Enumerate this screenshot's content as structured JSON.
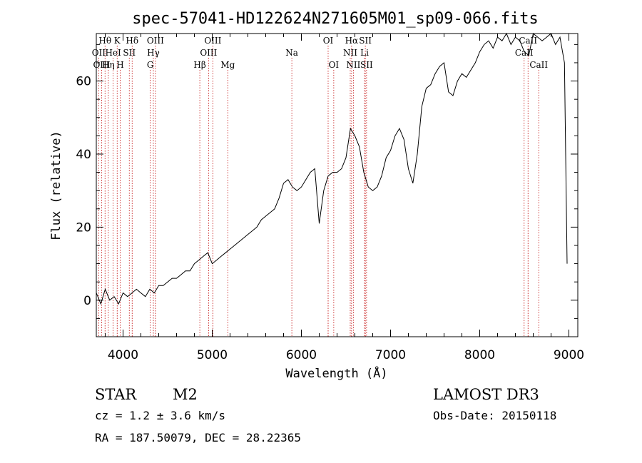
{
  "chart_data": {
    "type": "line",
    "title": "spec-57041-HD122624N271605M01_sp09-066.fits",
    "xlabel": "Wavelength (Å)",
    "ylabel": "Flux (relative)",
    "xlim": [
      3700,
      9100
    ],
    "ylim": [
      -10,
      73
    ],
    "xticks": [
      4000,
      5000,
      6000,
      7000,
      8000,
      9000
    ],
    "yticks": [
      0,
      20,
      40,
      60
    ],
    "series": [
      {
        "name": "spectrum",
        "x": [
          3700,
          3750,
          3800,
          3850,
          3900,
          3950,
          4000,
          4050,
          4100,
          4150,
          4200,
          4250,
          4300,
          4350,
          4400,
          4450,
          4500,
          4550,
          4600,
          4650,
          4700,
          4750,
          4800,
          4850,
          4900,
          4950,
          5000,
          5050,
          5100,
          5150,
          5200,
          5250,
          5300,
          5350,
          5400,
          5450,
          5500,
          5550,
          5600,
          5650,
          5700,
          5750,
          5800,
          5850,
          5900,
          5950,
          6000,
          6050,
          6100,
          6150,
          6200,
          6250,
          6300,
          6350,
          6400,
          6450,
          6500,
          6550,
          6600,
          6650,
          6700,
          6750,
          6800,
          6850,
          6900,
          6950,
          7000,
          7050,
          7100,
          7150,
          7200,
          7250,
          7300,
          7350,
          7400,
          7450,
          7500,
          7550,
          7600,
          7650,
          7700,
          7750,
          7800,
          7850,
          7900,
          7950,
          8000,
          8050,
          8100,
          8150,
          8200,
          8250,
          8300,
          8350,
          8400,
          8450,
          8500,
          8550,
          8600,
          8650,
          8700,
          8750,
          8800,
          8850,
          8900,
          8950,
          8980
        ],
        "y": [
          2,
          -1,
          3,
          0,
          1,
          -1,
          2,
          1,
          2,
          3,
          2,
          1,
          3,
          2,
          4,
          4,
          5,
          6,
          6,
          7,
          8,
          8,
          10,
          11,
          12,
          13,
          10,
          11,
          12,
          13,
          14,
          15,
          16,
          17,
          18,
          19,
          20,
          22,
          23,
          24,
          25,
          28,
          32,
          33,
          31,
          30,
          31,
          33,
          35,
          36,
          21,
          30,
          34,
          35,
          35,
          36,
          39,
          47,
          45,
          42,
          35,
          31,
          30,
          31,
          34,
          39,
          41,
          45,
          47,
          44,
          36,
          32,
          40,
          53,
          58,
          59,
          62,
          64,
          65,
          57,
          56,
          60,
          62,
          61,
          63,
          65,
          68,
          70,
          71,
          69,
          72,
          71,
          73,
          70,
          72,
          71,
          68,
          67,
          73,
          72,
          71,
          72,
          73,
          70,
          72,
          65,
          10
        ]
      }
    ],
    "lines": [
      {
        "label": "Hθ",
        "wavelength": 3798,
        "row": 0
      },
      {
        "label": "OII",
        "wavelength": 3727,
        "row": 1
      },
      {
        "label": "OIII",
        "wavelength": 3760,
        "row": 2
      },
      {
        "label": "K",
        "wavelength": 3934,
        "row": 0
      },
      {
        "label": "HeI",
        "wavelength": 3889,
        "row": 1
      },
      {
        "label": "Hη",
        "wavelength": 3835,
        "row": 2
      },
      {
        "label": "Hδ",
        "wavelength": 4102,
        "row": 0
      },
      {
        "label": "SII",
        "wavelength": 4070,
        "row": 1
      },
      {
        "label": "H",
        "wavelength": 3968,
        "row": 2
      },
      {
        "label": "OIII",
        "wavelength": 4363,
        "row": 0
      },
      {
        "label": "Hγ",
        "wavelength": 4340,
        "row": 1
      },
      {
        "label": "G",
        "wavelength": 4305,
        "row": 2
      },
      {
        "label": "OIII",
        "wavelength": 5007,
        "row": 0
      },
      {
        "label": "OIII",
        "wavelength": 4959,
        "row": 1
      },
      {
        "label": "Hβ",
        "wavelength": 4861,
        "row": 2
      },
      {
        "label": "Mg",
        "wavelength": 5175,
        "row": 2
      },
      {
        "label": "Na",
        "wavelength": 5893,
        "row": 1
      },
      {
        "label": "OI",
        "wavelength": 6300,
        "row": 0
      },
      {
        "label": "OI",
        "wavelength": 6363,
        "row": 2
      },
      {
        "label": "Hα",
        "wavelength": 6563,
        "row": 0
      },
      {
        "label": "NII",
        "wavelength": 6548,
        "row": 1
      },
      {
        "label": "NII",
        "wavelength": 6583,
        "row": 2
      },
      {
        "label": "SII",
        "wavelength": 6717,
        "row": 0
      },
      {
        "label": "Li",
        "wavelength": 6708,
        "row": 1
      },
      {
        "label": "SII",
        "wavelength": 6731,
        "row": 2
      },
      {
        "label": "CaII",
        "wavelength": 8542,
        "row": 0
      },
      {
        "label": "CaII",
        "wavelength": 8498,
        "row": 1
      },
      {
        "label": "CaII",
        "wavelength": 8662,
        "row": 2
      }
    ]
  },
  "info": {
    "class": "STAR",
    "subclass": "M2",
    "survey": "LAMOST DR3",
    "cz": "cz = 1.2 ± 3.6 km/s",
    "obs_date": "Obs-Date: 20150118",
    "radec": "RA = 187.50079, DEC =  28.22365"
  },
  "colors": {
    "line_marker": "#c00000",
    "spectrum": "#000000"
  }
}
